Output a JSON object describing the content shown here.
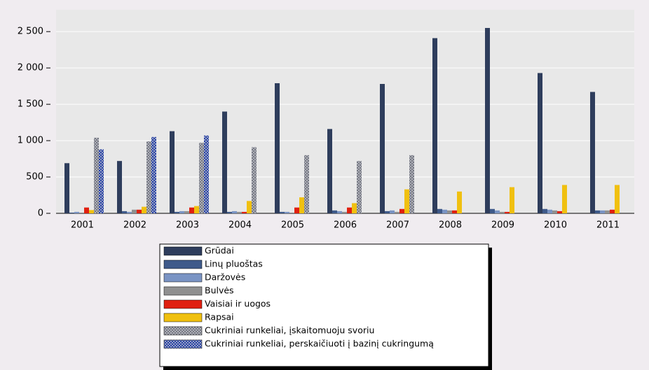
{
  "chart_data": {
    "type": "bar",
    "categories": [
      "2001",
      "2002",
      "2003",
      "2004",
      "2005",
      "2006",
      "2007",
      "2008",
      "2009",
      "2010",
      "2011"
    ],
    "series": [
      {
        "name": "Grūdai",
        "color": "#2e3d5c",
        "values": [
          690,
          720,
          1130,
          1400,
          1790,
          1160,
          1780,
          2410,
          2550,
          1930,
          1670
        ]
      },
      {
        "name": "Linų pluoštas",
        "color": "#3f5a8a",
        "values": [
          10,
          30,
          20,
          20,
          20,
          40,
          30,
          60,
          60,
          60,
          40
        ]
      },
      {
        "name": "Daržovės",
        "color": "#7a94c4",
        "values": [
          20,
          20,
          30,
          30,
          20,
          30,
          40,
          50,
          40,
          50,
          40
        ]
      },
      {
        "name": "Bulvės",
        "color": "#909090",
        "values": [
          10,
          50,
          30,
          20,
          10,
          20,
          20,
          40,
          20,
          40,
          40
        ]
      },
      {
        "name": "Vaisiai ir uogos",
        "color": "#e02010",
        "values": [
          80,
          50,
          80,
          20,
          80,
          80,
          60,
          40,
          20,
          30,
          50
        ]
      },
      {
        "name": "Rapsai",
        "color": "#f0c010",
        "values": [
          45,
          90,
          100,
          170,
          220,
          140,
          330,
          300,
          360,
          390,
          390
        ]
      },
      {
        "name": "Cukriniai runkeliai, įskaitomuoju svoriu",
        "color": "#6a6e78",
        "pattern": "crosshatch",
        "values": [
          1040,
          990,
          970,
          910,
          800,
          720,
          800,
          null,
          null,
          null,
          null
        ]
      },
      {
        "name": "Cukriniai runkeliai, perskaičiuoti į bazinį cukringumą",
        "color": "#1030a0",
        "pattern": "crosshatch",
        "values": [
          880,
          1050,
          1070,
          null,
          null,
          null,
          null,
          null,
          null,
          null,
          null
        ]
      }
    ],
    "ylim": [
      0,
      2800
    ],
    "yticks": [
      0,
      500,
      {
        "value": 1000,
        "label": "1 000"
      },
      {
        "value": 1500,
        "label": "1 500"
      },
      {
        "value": 2000,
        "label": "2 000"
      },
      {
        "value": 2500,
        "label": "2 500"
      }
    ],
    "grid": true
  }
}
